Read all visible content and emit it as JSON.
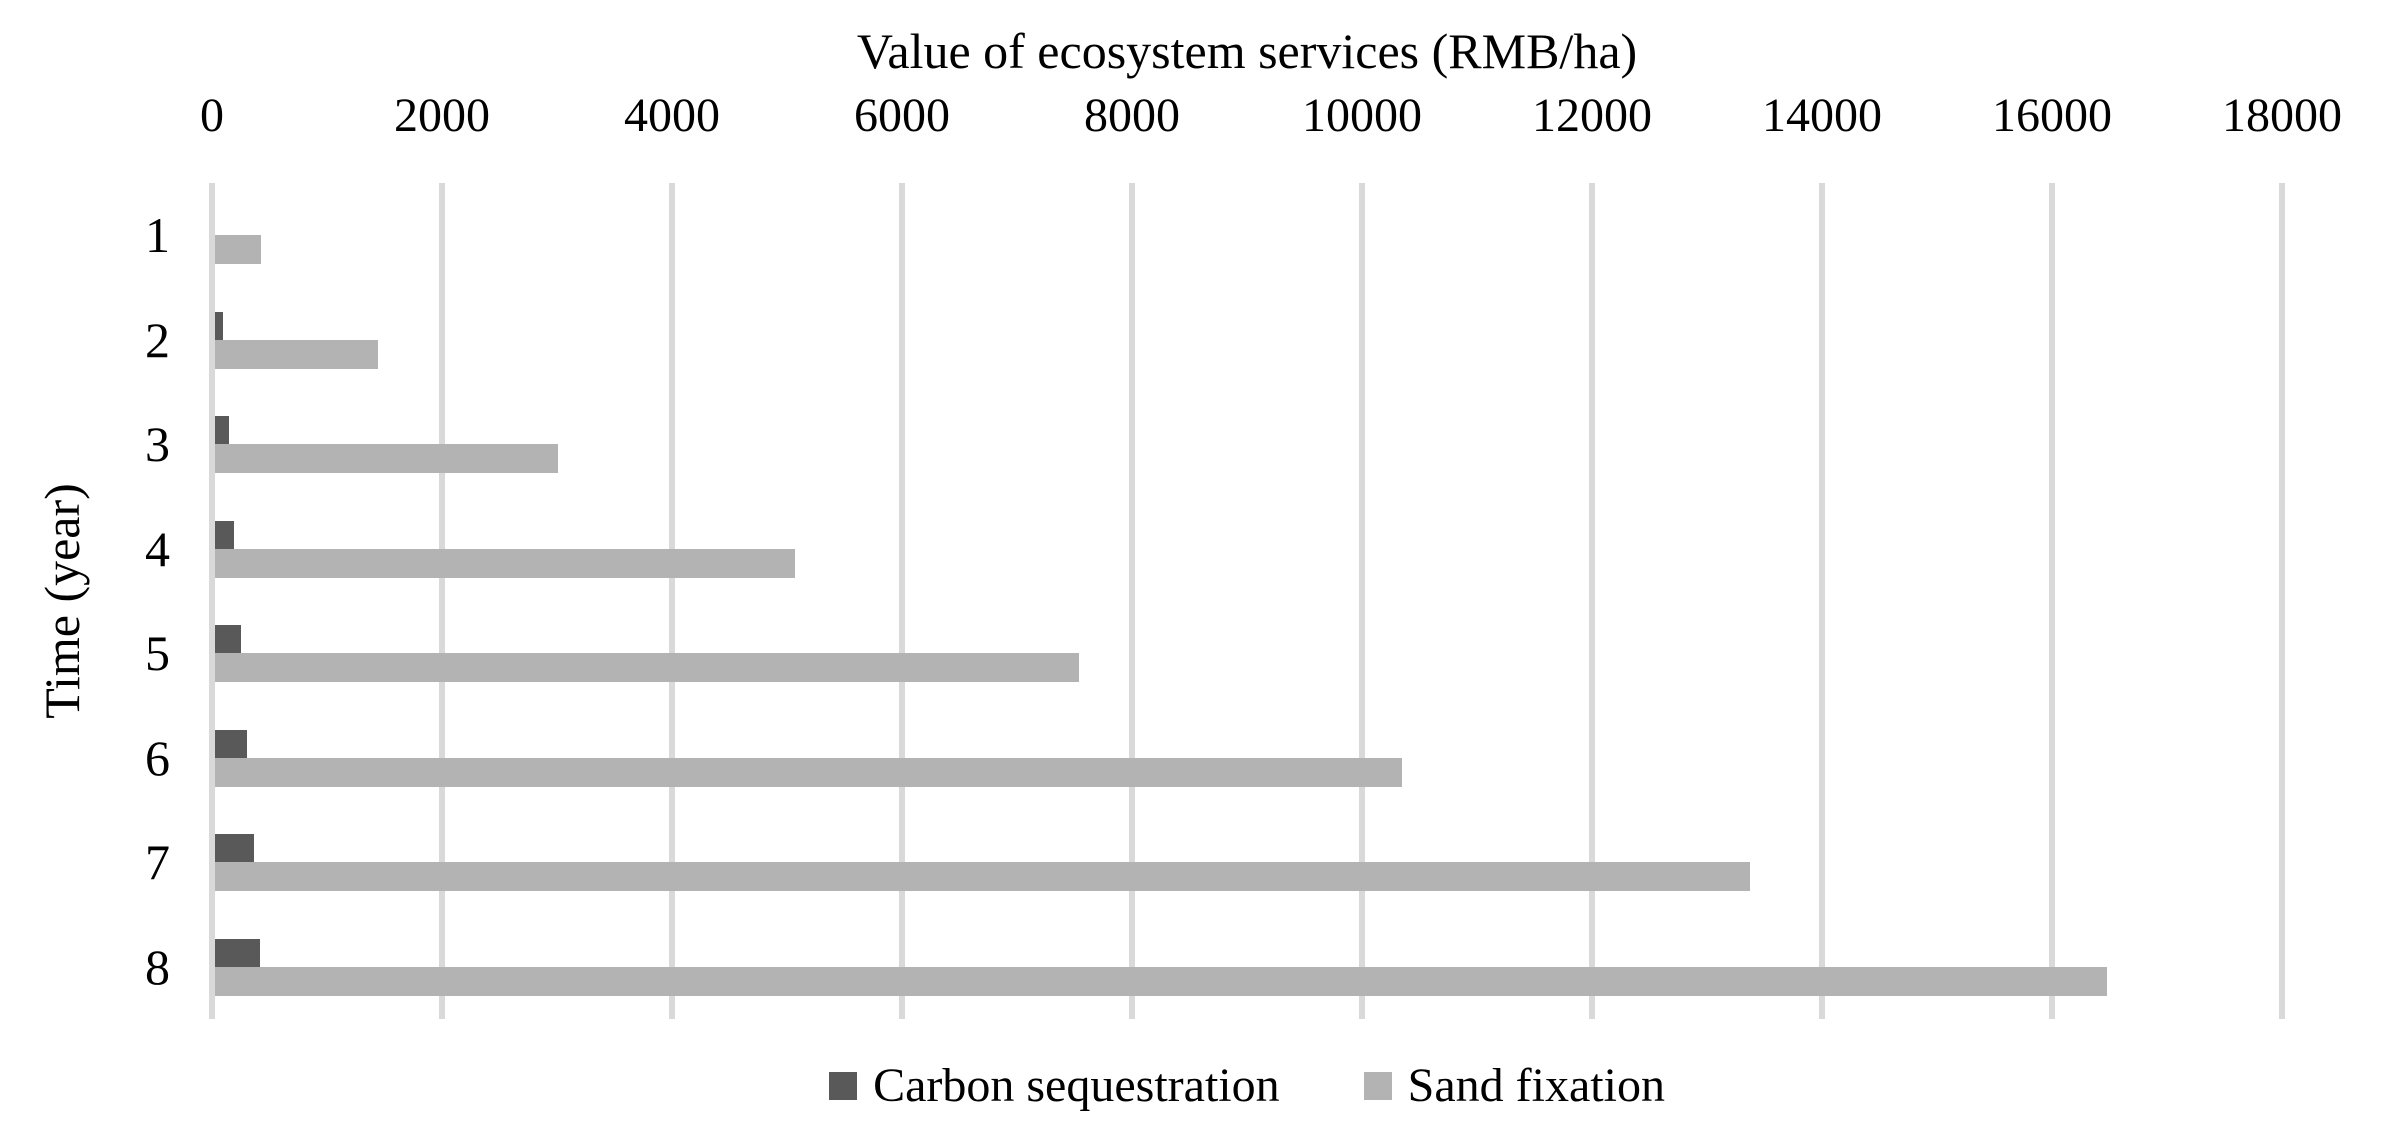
{
  "chart_data": {
    "type": "bar",
    "orientation": "horizontal",
    "title": "Value of ecosystem services (RMB/ha)",
    "ylabel": "Time (year)",
    "categories": [
      "1",
      "2",
      "3",
      "4",
      "5",
      "6",
      "7",
      "8"
    ],
    "series": [
      {
        "name": "Carbon sequestration",
        "color": "#595959",
        "values": [
          0,
          95,
          145,
          195,
          255,
          305,
          365,
          420
        ]
      },
      {
        "name": "Sand fixation",
        "color": "#b3b3b3",
        "values": [
          430,
          1440,
          3010,
          5070,
          7540,
          10350,
          13370,
          16480
        ]
      }
    ],
    "xlim": [
      0,
      18000
    ],
    "xticks": [
      "0",
      "2000",
      "4000",
      "6000",
      "8000",
      "10000",
      "12000",
      "14000",
      "16000",
      "18000"
    ],
    "grid": "vertical",
    "legend_position": "bottom",
    "colors": {
      "gridline": "#d9d9d9",
      "axis_line": "#d9d9d9",
      "text": "#000000",
      "background": "#ffffff"
    }
  }
}
